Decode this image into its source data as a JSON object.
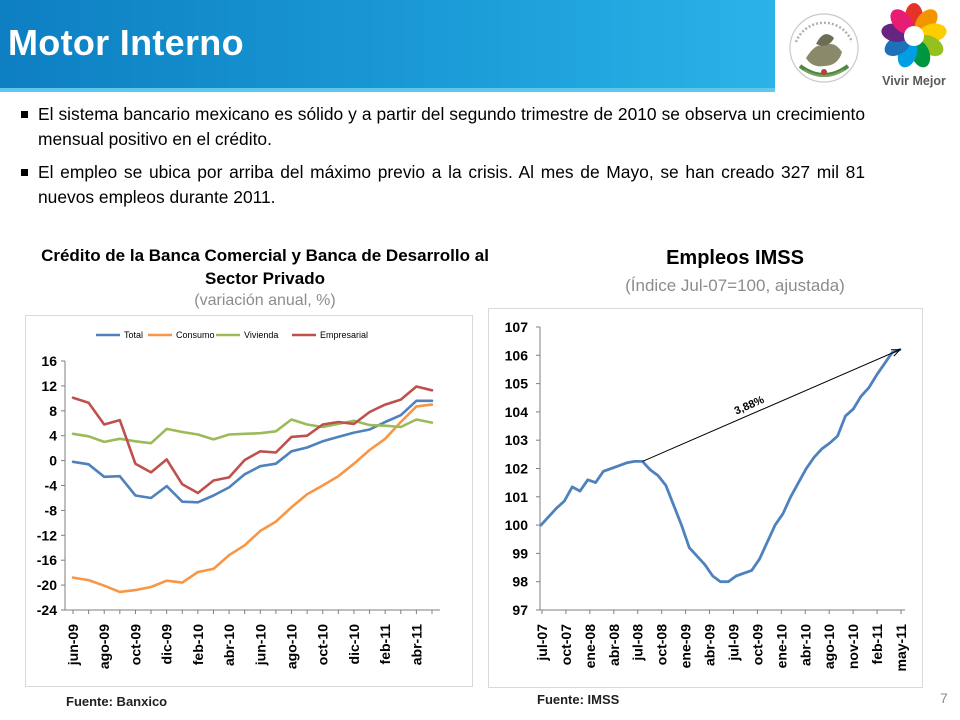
{
  "slide": {
    "title": "Motor Interno",
    "page_number": "7",
    "bullets": [
      "El sistema bancario mexicano es sólido y a partir del segundo trimestre de 2010 se observa un crecimiento mensual positivo en el crédito.",
      "El empleo se ubica por arriba del máximo previo a la crisis. Al mes de Mayo, se han creado 327 mil 81 nuevos empleos durante 2011."
    ],
    "logos": {
      "vivir_mejor": "Vivir Mejor"
    },
    "colors": {
      "title_bar": "#1a9ad6"
    }
  },
  "chart_data": [
    {
      "type": "line",
      "title": "Crédito de la Banca Comercial y Banca de Desarrollo al Sector Privado",
      "subtitle": "(variación anual, %)",
      "source": "Fuente: Banxico",
      "legend_position": "top",
      "ylim": [
        -24,
        16
      ],
      "yticks": [
        "16",
        "12",
        "8",
        "4",
        "0",
        "-4",
        "-8",
        "-12",
        "-16",
        "-20",
        "-24"
      ],
      "x_tick_labels": [
        "jun-09",
        "ago-09",
        "oct-09",
        "dic-09",
        "feb-10",
        "abr-10",
        "jun-10",
        "ago-10",
        "oct-10",
        "dic-10",
        "feb-11",
        "abr-11"
      ],
      "grid": false,
      "series": [
        {
          "name": "Total",
          "color": "#4f81bd",
          "values": [
            -0.2,
            -0.6,
            -2.6,
            -2.5,
            -5.6,
            -6.0,
            -4.1,
            -6.6,
            -6.7,
            -5.6,
            -4.3,
            -2.2,
            -0.9,
            -0.5,
            1.5,
            2.1,
            3.1,
            3.8,
            4.5,
            5.0,
            6.2,
            7.3,
            9.6,
            9.6
          ]
        },
        {
          "name": "Consumo",
          "color": "#f79646",
          "values": [
            -18.8,
            -19.2,
            -20.1,
            -21.1,
            -20.8,
            -20.3,
            -19.3,
            -19.6,
            -17.9,
            -17.4,
            -15.2,
            -13.6,
            -11.3,
            -9.8,
            -7.5,
            -5.4,
            -4.0,
            -2.5,
            -0.5,
            1.7,
            3.5,
            6.2,
            8.7,
            9.0
          ]
        },
        {
          "name": "Vivienda",
          "color": "#9bbb59",
          "values": [
            4.3,
            3.9,
            3.0,
            3.5,
            3.1,
            2.8,
            5.1,
            4.6,
            4.2,
            3.4,
            4.2,
            4.3,
            4.4,
            4.7,
            6.6,
            5.8,
            5.4,
            5.9,
            6.4,
            5.7,
            5.6,
            5.4,
            6.6,
            6.1
          ]
        },
        {
          "name": "Empresarial",
          "color": "#c0504d",
          "values": [
            10.1,
            9.3,
            5.8,
            6.5,
            -0.5,
            -1.9,
            0.2,
            -3.8,
            -5.2,
            -3.2,
            -2.7,
            0.1,
            1.5,
            1.3,
            3.8,
            4.0,
            5.8,
            6.2,
            5.9,
            7.8,
            9.0,
            9.8,
            11.9,
            11.3
          ]
        }
      ]
    },
    {
      "type": "line",
      "title": "Empleos IMSS",
      "subtitle": "(Índice Jul-07=100, ajustada)",
      "source": "Fuente: IMSS",
      "ylim": [
        97,
        107
      ],
      "yticks": [
        "107",
        "106",
        "105",
        "104",
        "103",
        "102",
        "101",
        "100",
        "99",
        "98",
        "97"
      ],
      "x_tick_labels": [
        "jul-07",
        "oct-07",
        "ene-08",
        "abr-08",
        "jul-08",
        "oct-08",
        "ene-09",
        "abr-09",
        "jul-09",
        "oct-09",
        "ene-10",
        "abr-10",
        "ago-10",
        "nov-10",
        "feb-11",
        "may-11"
      ],
      "grid": false,
      "annotation": "3,88%",
      "series": [
        {
          "name": "",
          "color": "#4f81bd",
          "values": [
            100.0,
            100.3,
            100.6,
            100.85,
            101.35,
            101.2,
            101.6,
            101.5,
            101.9,
            102.0,
            102.1,
            102.2,
            102.25,
            102.25,
            101.95,
            101.75,
            101.4,
            100.7,
            100.0,
            99.2,
            98.9,
            98.6,
            98.2,
            98.0,
            98.0,
            98.2,
            98.3,
            98.4,
            98.8,
            99.4,
            100.0,
            100.4,
            101.0,
            101.5,
            102.0,
            102.4,
            102.7,
            102.9,
            103.15,
            103.85,
            104.1,
            104.55,
            104.85,
            105.3,
            105.7,
            106.1,
            106.2
          ]
        }
      ]
    }
  ]
}
